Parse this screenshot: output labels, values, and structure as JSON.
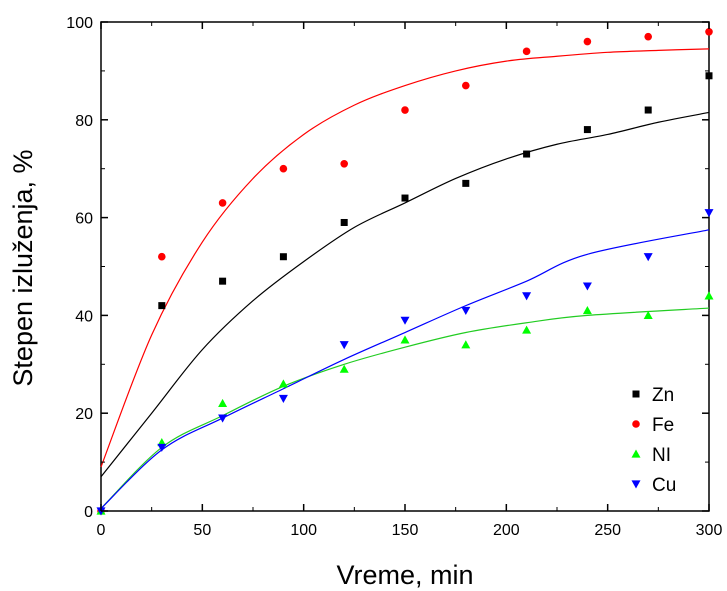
{
  "chart_data": {
    "type": "scatter",
    "title": "",
    "xlabel": "Vreme, min",
    "ylabel": "Stepen izluženja, %",
    "xlim": [
      0,
      300
    ],
    "ylim": [
      0,
      100
    ],
    "x_ticks": [
      0,
      50,
      100,
      150,
      200,
      250,
      300
    ],
    "y_ticks": [
      0,
      20,
      40,
      60,
      80,
      100
    ],
    "grid": false,
    "legend_position": "bottom-right",
    "x": [
      30,
      60,
      90,
      120,
      150,
      180,
      210,
      240,
      270,
      300
    ],
    "series": [
      {
        "name": "Zn",
        "color": "#000000",
        "marker": "square",
        "values": [
          42,
          47,
          52,
          59,
          64,
          67,
          73,
          78,
          82,
          89
        ],
        "fit": [
          7,
          20,
          33,
          43,
          51,
          58,
          63,
          68,
          72,
          75,
          77,
          79.5,
          81.5
        ]
      },
      {
        "name": "Fe",
        "color": "#ff0000",
        "marker": "circle",
        "values": [
          52,
          63,
          70,
          71,
          82,
          87,
          94,
          96,
          97,
          98
        ],
        "fit": [
          9,
          36,
          55,
          68,
          77,
          83,
          87,
          90,
          92,
          93,
          93.8,
          94.2,
          94.5
        ]
      },
      {
        "name": "NI",
        "color": "#00ff00",
        "marker": "triangle-up",
        "values": [
          14,
          22,
          26,
          29,
          35,
          34,
          37,
          41,
          40,
          44
        ],
        "fit": [
          0.5,
          13,
          19.5,
          25.5,
          30,
          33.5,
          36.5,
          38.5,
          40,
          41.5
        ]
      },
      {
        "name": "Cu",
        "color": "#0000ff",
        "marker": "triangle-down",
        "values": [
          13,
          19,
          23,
          34,
          39,
          41,
          44,
          46,
          52,
          61
        ],
        "fit": [
          0.5,
          12.5,
          19,
          25,
          31,
          36.5,
          42,
          47,
          52.5,
          57.5
        ]
      }
    ],
    "fit_x": {
      "Zn": [
        0,
        25,
        50,
        75,
        100,
        125,
        150,
        175,
        200,
        225,
        250,
        275,
        300
      ],
      "Fe": [
        0,
        25,
        50,
        75,
        100,
        125,
        150,
        175,
        200,
        225,
        250,
        275,
        300
      ],
      "NI": [
        0,
        30,
        60,
        90,
        120,
        150,
        180,
        210,
        240,
        300
      ],
      "Cu": [
        0,
        30,
        60,
        90,
        120,
        150,
        180,
        210,
        240,
        300
      ]
    }
  }
}
